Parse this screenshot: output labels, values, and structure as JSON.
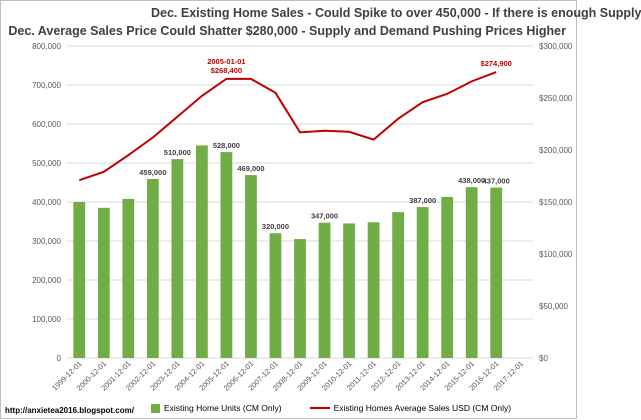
{
  "chart_data": {
    "type": "bar",
    "title": "Dec. Existing Home Sales - Could Spike to over 450,000 - If there is enough Supply",
    "subtitle": "Dec. Average Sales Price Could Shatter $280,000 - Supply and Demand Pushing Prices Higher",
    "categories": [
      "1999-12-01",
      "2000-12-01",
      "2001-12-01",
      "2002-12-01",
      "2003-12-01",
      "2004-12-01",
      "2005-12-01",
      "2006-12-01",
      "2007-12-01",
      "2008-12-01",
      "2009-12-01",
      "2010-12-01",
      "2011-12-01",
      "2012-12-01",
      "2013-12-01",
      "2014-12-01",
      "2015-12-01",
      "2016-12-01",
      "2017-12-01"
    ],
    "series": [
      {
        "name": "Existing Home Units (CM Only)",
        "type": "bar",
        "axis": "left",
        "color": "#70ad47",
        "values": [
          400000,
          385000,
          408000,
          459000,
          510000,
          545000,
          528000,
          469000,
          320000,
          305000,
          347000,
          345000,
          348000,
          374000,
          387000,
          413000,
          438000,
          437000,
          null
        ]
      },
      {
        "name": "Existing Homes Average Sales USD (CM Only)",
        "type": "line",
        "axis": "right",
        "color": "#c00000",
        "values": [
          171000,
          179000,
          195000,
          212000,
          232000,
          252000,
          268400,
          268400,
          255000,
          217000,
          218500,
          217500,
          210000,
          230000,
          246000,
          254000,
          266000,
          274900,
          null
        ]
      }
    ],
    "data_labels": [
      {
        "series": 0,
        "index": 3,
        "text": "459,000"
      },
      {
        "series": 0,
        "index": 4,
        "text": "510,000"
      },
      {
        "series": 0,
        "index": 6,
        "text": "528,000"
      },
      {
        "series": 0,
        "index": 7,
        "text": "469,000"
      },
      {
        "series": 0,
        "index": 8,
        "text": "320,000"
      },
      {
        "series": 0,
        "index": 10,
        "text": "347,000"
      },
      {
        "series": 0,
        "index": 14,
        "text": "387,000"
      },
      {
        "series": 0,
        "index": 16,
        "text": "438,000"
      },
      {
        "series": 0,
        "index": 17,
        "text": "437,000"
      },
      {
        "series": 1,
        "index": 6,
        "text": "$268,400",
        "date": "2005-01-01"
      },
      {
        "series": 1,
        "index": 17,
        "text": "$274,900"
      }
    ],
    "y_left": {
      "range": [
        0,
        800000
      ],
      "ticks": [
        0,
        100000,
        200000,
        300000,
        400000,
        500000,
        600000,
        700000,
        800000
      ],
      "tick_labels": [
        "0",
        "100,000",
        "200,000",
        "300,000",
        "400,000",
        "500,000",
        "600,000",
        "700,000",
        "800,000"
      ]
    },
    "y_right": {
      "range": [
        0,
        300000
      ],
      "ticks": [
        0,
        50000,
        100000,
        150000,
        200000,
        250000,
        300000
      ],
      "tick_labels": [
        "$0",
        "$50,000",
        "$100,000",
        "$150,000",
        "$200,000",
        "$250,000",
        "$300,000"
      ]
    },
    "grid": true,
    "legend_position": "bottom",
    "colors": {
      "grid": "#d9d9d9",
      "axis_text": "#595959",
      "label_text": "#404040"
    }
  },
  "footer": "http://anxietea2016.blogspot.com/"
}
